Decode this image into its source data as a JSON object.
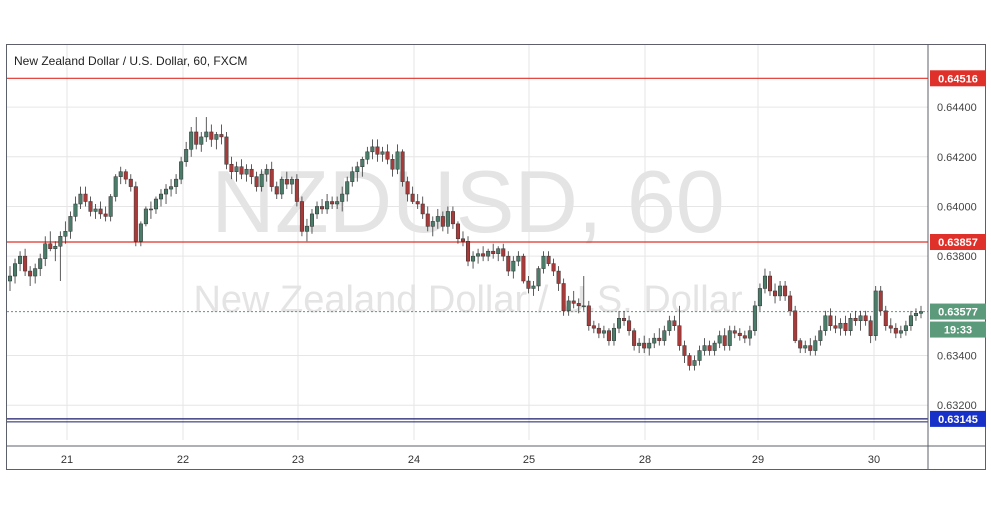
{
  "header": {
    "symbol_title": "New Zealand Dollar / U.S. Dollar, 60, FXCM"
  },
  "watermark": {
    "big": "NZDUSD, 60",
    "small": "New Zealand Dollar / U.S. Dollar"
  },
  "price_labels": {
    "top_line": "0.64516",
    "mid_line": "0.63857",
    "current": "0.63577",
    "countdown": "19:33",
    "bottom_line": "0.63145"
  },
  "colors": {
    "up": "#4a7c69",
    "down": "#a83a3a",
    "resistance_line": "#e0302a",
    "support_line": "#1a1a6e",
    "current_label_bg": "#5b9a7a",
    "bottom_label_bg": "#1730c8",
    "grid": "#e6e6e6"
  },
  "chart_data": {
    "type": "candlestick",
    "title": "New Zealand Dollar / U.S. Dollar, 60, FXCM",
    "y_ticks": [
      "0.64400",
      "0.64200",
      "0.64000",
      "0.63800",
      "0.63400",
      "0.63200"
    ],
    "ylim": [
      0.6306,
      0.6465
    ],
    "x_ticks": [
      "21",
      "22",
      "23",
      "24",
      "25",
      "28",
      "29",
      "30"
    ],
    "horizontal_lines": [
      {
        "label": "0.64516",
        "value": 0.64516,
        "color": "#e0302a"
      },
      {
        "label": "0.63857",
        "value": 0.63857,
        "color": "#e0302a"
      },
      {
        "label": "0.63145",
        "value": 0.63145,
        "color": "#1a1a6e"
      }
    ],
    "current_price": 0.63577,
    "grid": true,
    "candles": [
      [
        0.637,
        0.6376,
        0.6366,
        0.6372
      ],
      [
        0.6372,
        0.6379,
        0.6369,
        0.6377
      ],
      [
        0.6377,
        0.6382,
        0.6374,
        0.638
      ],
      [
        0.638,
        0.6383,
        0.6372,
        0.6374
      ],
      [
        0.6374,
        0.6376,
        0.6368,
        0.6372
      ],
      [
        0.6372,
        0.6377,
        0.6369,
        0.6375
      ],
      [
        0.6375,
        0.6381,
        0.6372,
        0.6379
      ],
      [
        0.6379,
        0.6388,
        0.6376,
        0.6385
      ],
      [
        0.6385,
        0.639,
        0.6382,
        0.6383
      ],
      [
        0.6383,
        0.6386,
        0.6378,
        0.6384
      ],
      [
        0.6384,
        0.639,
        0.637,
        0.6388
      ],
      [
        0.6388,
        0.6394,
        0.6385,
        0.639
      ],
      [
        0.639,
        0.6398,
        0.6387,
        0.6396
      ],
      [
        0.6396,
        0.6404,
        0.6394,
        0.6401
      ],
      [
        0.6401,
        0.6408,
        0.6399,
        0.6405
      ],
      [
        0.6405,
        0.6408,
        0.64,
        0.6402
      ],
      [
        0.6402,
        0.6404,
        0.6396,
        0.6398
      ],
      [
        0.6398,
        0.6401,
        0.6395,
        0.6399
      ],
      [
        0.6399,
        0.6402,
        0.6395,
        0.6397
      ],
      [
        0.6397,
        0.64,
        0.6394,
        0.6396
      ],
      [
        0.6396,
        0.6405,
        0.6394,
        0.6404
      ],
      [
        0.6404,
        0.6413,
        0.6402,
        0.6412
      ],
      [
        0.6412,
        0.6416,
        0.6409,
        0.6414
      ],
      [
        0.6414,
        0.6415,
        0.6409,
        0.6411
      ],
      [
        0.6411,
        0.6413,
        0.6406,
        0.6408
      ],
      [
        0.6408,
        0.641,
        0.6384,
        0.6386
      ],
      [
        0.6386,
        0.6394,
        0.6384,
        0.6393
      ],
      [
        0.6393,
        0.64,
        0.6392,
        0.6399
      ],
      [
        0.6399,
        0.6402,
        0.6395,
        0.6399
      ],
      [
        0.6399,
        0.6404,
        0.6397,
        0.6403
      ],
      [
        0.6403,
        0.6407,
        0.64,
        0.6405
      ],
      [
        0.6405,
        0.6409,
        0.6401,
        0.6407
      ],
      [
        0.6407,
        0.6411,
        0.6404,
        0.6408
      ],
      [
        0.6408,
        0.6413,
        0.6405,
        0.6411
      ],
      [
        0.6411,
        0.642,
        0.6409,
        0.6418
      ],
      [
        0.6418,
        0.6426,
        0.6416,
        0.6423
      ],
      [
        0.6423,
        0.6432,
        0.642,
        0.643
      ],
      [
        0.643,
        0.6436,
        0.6423,
        0.6425
      ],
      [
        0.6425,
        0.643,
        0.6422,
        0.6428
      ],
      [
        0.6428,
        0.6436,
        0.6426,
        0.643
      ],
      [
        0.643,
        0.6433,
        0.6424,
        0.6427
      ],
      [
        0.6427,
        0.643,
        0.6423,
        0.6429
      ],
      [
        0.6429,
        0.6433,
        0.6425,
        0.6428
      ],
      [
        0.6428,
        0.643,
        0.6415,
        0.6417
      ],
      [
        0.6417,
        0.642,
        0.6411,
        0.6414
      ],
      [
        0.6414,
        0.6418,
        0.641,
        0.6416
      ],
      [
        0.6416,
        0.6419,
        0.6411,
        0.6413
      ],
      [
        0.6413,
        0.6417,
        0.641,
        0.6415
      ],
      [
        0.6415,
        0.6417,
        0.6409,
        0.6412
      ],
      [
        0.6412,
        0.6414,
        0.6406,
        0.6408
      ],
      [
        0.6408,
        0.6415,
        0.6406,
        0.6413
      ],
      [
        0.6413,
        0.6417,
        0.641,
        0.6415
      ],
      [
        0.6415,
        0.6418,
        0.6406,
        0.6408
      ],
      [
        0.6408,
        0.641,
        0.6403,
        0.6405
      ],
      [
        0.6405,
        0.6412,
        0.6403,
        0.6411
      ],
      [
        0.6411,
        0.6414,
        0.6407,
        0.6409
      ],
      [
        0.6409,
        0.6412,
        0.6405,
        0.6411
      ],
      [
        0.6411,
        0.6413,
        0.64,
        0.6402
      ],
      [
        0.6402,
        0.6404,
        0.6388,
        0.639
      ],
      [
        0.639,
        0.6395,
        0.6386,
        0.6392
      ],
      [
        0.6392,
        0.6399,
        0.6389,
        0.6397
      ],
      [
        0.6397,
        0.6402,
        0.6395,
        0.64
      ],
      [
        0.64,
        0.6403,
        0.6397,
        0.6399
      ],
      [
        0.6399,
        0.6405,
        0.6397,
        0.6402
      ],
      [
        0.6402,
        0.6404,
        0.6399,
        0.6401
      ],
      [
        0.6401,
        0.6404,
        0.6399,
        0.6402
      ],
      [
        0.6402,
        0.6408,
        0.6398,
        0.6405
      ],
      [
        0.6405,
        0.6412,
        0.6402,
        0.641
      ],
      [
        0.641,
        0.6416,
        0.6408,
        0.6414
      ],
      [
        0.6414,
        0.6418,
        0.641,
        0.6416
      ],
      [
        0.6416,
        0.642,
        0.6412,
        0.6419
      ],
      [
        0.6419,
        0.6424,
        0.6417,
        0.6422
      ],
      [
        0.6422,
        0.6427,
        0.6419,
        0.6424
      ],
      [
        0.6424,
        0.6427,
        0.6418,
        0.6421
      ],
      [
        0.6421,
        0.6424,
        0.6418,
        0.6422
      ],
      [
        0.6422,
        0.6425,
        0.6417,
        0.6419
      ],
      [
        0.6419,
        0.6421,
        0.6412,
        0.6415
      ],
      [
        0.6415,
        0.6425,
        0.6413,
        0.6422
      ],
      [
        0.6422,
        0.6423,
        0.6408,
        0.641
      ],
      [
        0.641,
        0.6412,
        0.6402,
        0.6405
      ],
      [
        0.6405,
        0.6408,
        0.6401,
        0.6402
      ],
      [
        0.6402,
        0.6405,
        0.6399,
        0.6401
      ],
      [
        0.6401,
        0.6404,
        0.6395,
        0.6397
      ],
      [
        0.6397,
        0.64,
        0.639,
        0.6392
      ],
      [
        0.6392,
        0.6396,
        0.6388,
        0.6394
      ],
      [
        0.6394,
        0.6399,
        0.6391,
        0.6396
      ],
      [
        0.6396,
        0.6398,
        0.639,
        0.6392
      ],
      [
        0.6392,
        0.64,
        0.6389,
        0.6398
      ],
      [
        0.6398,
        0.64,
        0.6391,
        0.6393
      ],
      [
        0.6393,
        0.6394,
        0.6385,
        0.6387
      ],
      [
        0.6387,
        0.639,
        0.6384,
        0.6386
      ],
      [
        0.6386,
        0.6388,
        0.6376,
        0.6378
      ],
      [
        0.6378,
        0.6382,
        0.6375,
        0.638
      ],
      [
        0.638,
        0.6383,
        0.6377,
        0.6381
      ],
      [
        0.6381,
        0.6384,
        0.6378,
        0.638
      ],
      [
        0.638,
        0.6383,
        0.6378,
        0.6382
      ],
      [
        0.6382,
        0.6385,
        0.6379,
        0.6381
      ],
      [
        0.6381,
        0.6384,
        0.6378,
        0.6383
      ],
      [
        0.6383,
        0.6385,
        0.6378,
        0.638
      ],
      [
        0.638,
        0.6382,
        0.6372,
        0.6374
      ],
      [
        0.6374,
        0.638,
        0.6371,
        0.6378
      ],
      [
        0.6378,
        0.6382,
        0.6376,
        0.638
      ],
      [
        0.638,
        0.6381,
        0.6369,
        0.637
      ],
      [
        0.637,
        0.6372,
        0.6365,
        0.6367
      ],
      [
        0.6367,
        0.637,
        0.6364,
        0.6368
      ],
      [
        0.6368,
        0.6376,
        0.6366,
        0.6375
      ],
      [
        0.6375,
        0.6382,
        0.6373,
        0.638
      ],
      [
        0.638,
        0.6382,
        0.6376,
        0.6377
      ],
      [
        0.6377,
        0.6379,
        0.6372,
        0.6374
      ],
      [
        0.6374,
        0.6376,
        0.6366,
        0.6369
      ],
      [
        0.6369,
        0.6371,
        0.6356,
        0.6358
      ],
      [
        0.6358,
        0.6364,
        0.6356,
        0.6362
      ],
      [
        0.6362,
        0.6366,
        0.6359,
        0.6361
      ],
      [
        0.6361,
        0.6363,
        0.6357,
        0.636
      ],
      [
        0.636,
        0.6372,
        0.6358,
        0.636
      ],
      [
        0.636,
        0.6362,
        0.635,
        0.6352
      ],
      [
        0.6352,
        0.6354,
        0.6349,
        0.6351
      ],
      [
        0.6351,
        0.6353,
        0.6347,
        0.6349
      ],
      [
        0.6349,
        0.6352,
        0.6347,
        0.635
      ],
      [
        0.635,
        0.6351,
        0.6344,
        0.6346
      ],
      [
        0.6346,
        0.6353,
        0.6344,
        0.6351
      ],
      [
        0.6351,
        0.6358,
        0.6349,
        0.6355
      ],
      [
        0.6355,
        0.6358,
        0.6352,
        0.6354
      ],
      [
        0.6354,
        0.6356,
        0.6348,
        0.635
      ],
      [
        0.635,
        0.6351,
        0.6342,
        0.6344
      ],
      [
        0.6344,
        0.6347,
        0.6341,
        0.6345
      ],
      [
        0.6345,
        0.6348,
        0.6341,
        0.6343
      ],
      [
        0.6343,
        0.6347,
        0.634,
        0.6345
      ],
      [
        0.6345,
        0.6349,
        0.6343,
        0.6347
      ],
      [
        0.6347,
        0.6351,
        0.6344,
        0.6346
      ],
      [
        0.6346,
        0.6352,
        0.6344,
        0.635
      ],
      [
        0.635,
        0.6356,
        0.6348,
        0.6354
      ],
      [
        0.6354,
        0.6356,
        0.635,
        0.6352
      ],
      [
        0.6352,
        0.636,
        0.6342,
        0.6344
      ],
      [
        0.6344,
        0.6346,
        0.6337,
        0.634
      ],
      [
        0.634,
        0.6341,
        0.6334,
        0.6336
      ],
      [
        0.6336,
        0.634,
        0.6334,
        0.6338
      ],
      [
        0.6338,
        0.6344,
        0.6336,
        0.6342
      ],
      [
        0.6342,
        0.6347,
        0.634,
        0.6344
      ],
      [
        0.6344,
        0.6346,
        0.634,
        0.6342
      ],
      [
        0.6342,
        0.6346,
        0.634,
        0.6345
      ],
      [
        0.6345,
        0.635,
        0.6343,
        0.6348
      ],
      [
        0.6348,
        0.6351,
        0.6342,
        0.6344
      ],
      [
        0.6344,
        0.6352,
        0.6342,
        0.635
      ],
      [
        0.635,
        0.6352,
        0.6347,
        0.6349
      ],
      [
        0.6349,
        0.6351,
        0.6346,
        0.6348
      ],
      [
        0.6348,
        0.635,
        0.6345,
        0.6347
      ],
      [
        0.6347,
        0.6352,
        0.6344,
        0.635
      ],
      [
        0.635,
        0.6362,
        0.6348,
        0.636
      ],
      [
        0.636,
        0.6369,
        0.6358,
        0.6367
      ],
      [
        0.6367,
        0.6375,
        0.6365,
        0.6372
      ],
      [
        0.6372,
        0.6374,
        0.6364,
        0.6366
      ],
      [
        0.6366,
        0.6369,
        0.6361,
        0.6364
      ],
      [
        0.6364,
        0.637,
        0.6362,
        0.6368
      ],
      [
        0.6368,
        0.637,
        0.6362,
        0.6364
      ],
      [
        0.6364,
        0.6366,
        0.6356,
        0.6358
      ],
      [
        0.6358,
        0.636,
        0.6345,
        0.6346
      ],
      [
        0.6346,
        0.6347,
        0.6341,
        0.6343
      ],
      [
        0.6343,
        0.6346,
        0.6341,
        0.6344
      ],
      [
        0.6344,
        0.6347,
        0.634,
        0.6342
      ],
      [
        0.6342,
        0.6348,
        0.634,
        0.6346
      ],
      [
        0.6346,
        0.6352,
        0.6344,
        0.635
      ],
      [
        0.635,
        0.6358,
        0.6348,
        0.6356
      ],
      [
        0.6356,
        0.6359,
        0.635,
        0.6352
      ],
      [
        0.6352,
        0.6356,
        0.6349,
        0.6351
      ],
      [
        0.6351,
        0.6355,
        0.6348,
        0.6353
      ],
      [
        0.6353,
        0.6356,
        0.6348,
        0.635
      ],
      [
        0.635,
        0.6357,
        0.6348,
        0.6355
      ],
      [
        0.6355,
        0.6358,
        0.6352,
        0.6354
      ],
      [
        0.6354,
        0.6358,
        0.635,
        0.6356
      ],
      [
        0.6356,
        0.6358,
        0.6352,
        0.6354
      ],
      [
        0.6354,
        0.6356,
        0.6345,
        0.6348
      ],
      [
        0.6348,
        0.6368,
        0.6346,
        0.6366
      ],
      [
        0.6366,
        0.6368,
        0.6356,
        0.6358
      ],
      [
        0.6358,
        0.636,
        0.635,
        0.6352
      ],
      [
        0.6352,
        0.6355,
        0.6349,
        0.6351
      ],
      [
        0.6351,
        0.6353,
        0.6347,
        0.6349
      ],
      [
        0.6349,
        0.6352,
        0.6347,
        0.635
      ],
      [
        0.635,
        0.6354,
        0.6348,
        0.6352
      ],
      [
        0.6352,
        0.6358,
        0.635,
        0.6356
      ],
      [
        0.6356,
        0.6359,
        0.6354,
        0.6357
      ],
      [
        0.6357,
        0.636,
        0.6355,
        0.63577
      ]
    ]
  }
}
